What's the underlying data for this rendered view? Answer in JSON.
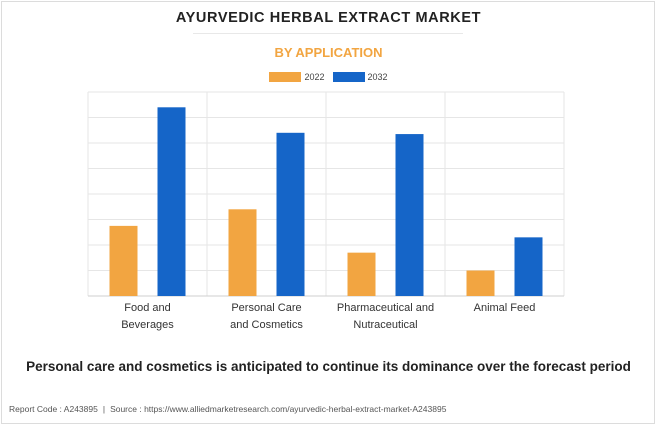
{
  "header": {
    "title": "AYURVEDIC HERBAL EXTRACT MARKET",
    "subtitle": "BY APPLICATION"
  },
  "caption": "Personal care and cosmetics is anticipated to continue its dominance over the forecast period",
  "footer": {
    "report_code": "Report Code : A243895",
    "separator": "|",
    "source": "Source : https://www.alliedmarketresearch.com/ayurvedic-herbal-extract-market-A243895"
  },
  "colors": {
    "series_2022": "#f2a541",
    "series_2032": "#1565c8",
    "grid": "#e6e6e6"
  },
  "chart_data": {
    "type": "bar",
    "title": "AYURVEDIC HERBAL EXTRACT MARKET",
    "subtitle": "BY APPLICATION",
    "categories": [
      [
        "Food and",
        "Beverages"
      ],
      [
        "Personal Care",
        "and Cosmetics"
      ],
      [
        "Pharmaceutical and",
        "Nutraceutical"
      ],
      [
        "Animal Feed"
      ]
    ],
    "series": [
      {
        "name": "2022",
        "color": "#f2a541",
        "values": [
          2.75,
          3.4,
          1.7,
          1.0
        ]
      },
      {
        "name": "2032",
        "color": "#1565c8",
        "values": [
          7.4,
          6.4,
          6.35,
          2.3
        ]
      }
    ],
    "xlabel": "",
    "ylabel": "",
    "ylim": [
      0,
      8
    ],
    "grid": true,
    "legend": "top-center"
  }
}
